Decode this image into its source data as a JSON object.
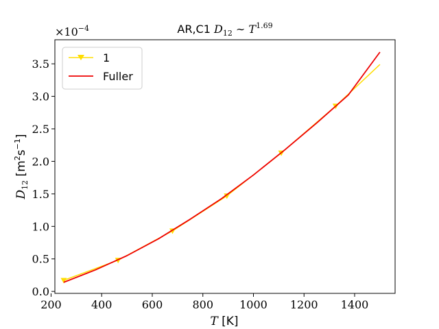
{
  "chart_data": {
    "type": "line",
    "title_prefix": "AR,C1",
    "title_math": "D",
    "title_sub": "12",
    "title_tilde": "∼",
    "title_T": "T",
    "title_exp": "1.69",
    "xlabel_var": "T",
    "xlabel_unit": "[K]",
    "ylabel_var": "D",
    "ylabel_sub": "12",
    "ylabel_unit": "[m",
    "ylabel_unit_exp": "2",
    "ylabel_unit_rest": "s",
    "ylabel_unit_exp2": "−1",
    "ylabel_unit_end": "]",
    "y_scale_base": "×10",
    "y_scale_exp": "−4",
    "xlim": [
      215,
      1560
    ],
    "ylim": [
      -0.03,
      3.87
    ],
    "xticks": [
      200,
      400,
      600,
      800,
      1000,
      1200,
      1400
    ],
    "yticks": [
      0.0,
      0.5,
      1.0,
      1.5,
      2.0,
      2.5,
      3.0,
      3.5
    ],
    "ytick_labels": [
      "0.0",
      "0.5",
      "1.0",
      "1.5",
      "2.0",
      "2.5",
      "3.0",
      "3.5"
    ],
    "grid": false,
    "legend_position": "top-left",
    "series": [
      {
        "name": "1",
        "color": "#ffdd00",
        "marker": "triangle-down",
        "x": [
          250,
          465,
          680,
          895,
          1110,
          1325,
          1500
        ],
        "y": [
          0.17,
          0.48,
          0.93,
          1.47,
          2.13,
          2.85,
          3.49
        ]
      },
      {
        "name": "Fuller",
        "color": "#ee0000",
        "marker": "none",
        "x": [
          250,
          375,
          500,
          625,
          750,
          875,
          1000,
          1125,
          1250,
          1375,
          1500
        ],
        "y": [
          0.14,
          0.33,
          0.55,
          0.81,
          1.11,
          1.43,
          1.79,
          2.18,
          2.59,
          3.02,
          3.68
        ]
      }
    ]
  }
}
